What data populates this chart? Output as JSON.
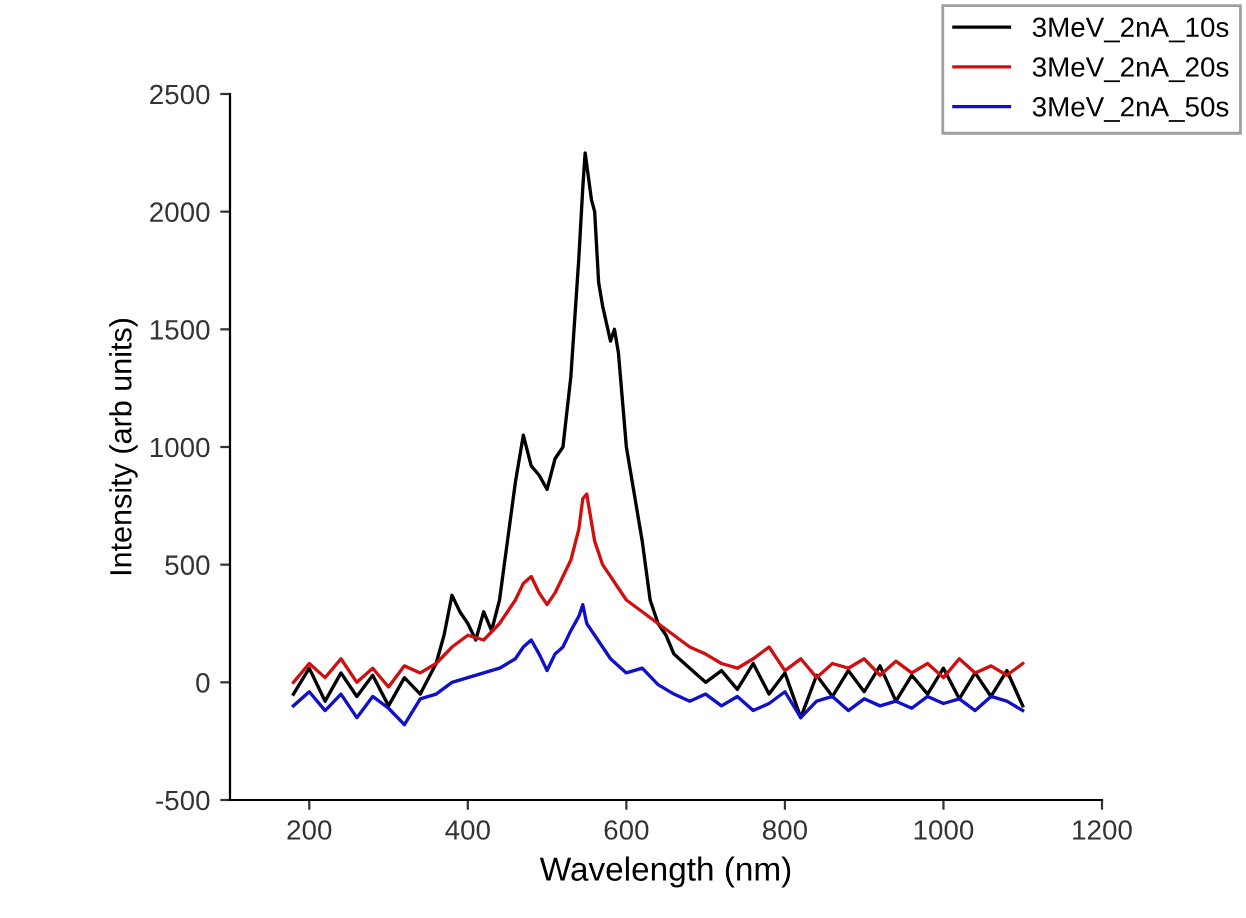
{
  "chart_data": {
    "type": "line",
    "xlabel": "Wavelength (nm)",
    "ylabel": "Intensity (arb units)",
    "xlim": [
      100,
      1200
    ],
    "ylim": [
      -500,
      2500
    ],
    "xticks": [
      200,
      400,
      600,
      800,
      1000,
      1200
    ],
    "yticks": [
      -500,
      0,
      500,
      1000,
      1500,
      2000,
      2500
    ],
    "legend": "top right",
    "grid": false,
    "marker": "none",
    "line_style": "solid",
    "series": [
      {
        "name": "3MeV_2nA_10s",
        "color": "#000000",
        "x": [
          180,
          200,
          220,
          240,
          260,
          280,
          300,
          320,
          340,
          360,
          370,
          380,
          390,
          400,
          410,
          420,
          430,
          440,
          450,
          460,
          470,
          480,
          490,
          500,
          510,
          520,
          530,
          540,
          545,
          548,
          552,
          556,
          560,
          565,
          570,
          580,
          585,
          590,
          600,
          610,
          620,
          630,
          640,
          650,
          660,
          680,
          700,
          720,
          740,
          760,
          780,
          800,
          820,
          840,
          860,
          880,
          900,
          920,
          940,
          960,
          980,
          1000,
          1020,
          1040,
          1060,
          1080,
          1100
        ],
        "values": [
          -50,
          60,
          -80,
          40,
          -60,
          30,
          -100,
          20,
          -50,
          80,
          200,
          370,
          300,
          250,
          180,
          300,
          220,
          350,
          600,
          850,
          1050,
          920,
          880,
          820,
          950,
          1000,
          1300,
          1800,
          2100,
          2250,
          2150,
          2050,
          2000,
          1700,
          1600,
          1450,
          1500,
          1400,
          1000,
          800,
          600,
          350,
          250,
          200,
          120,
          60,
          0,
          50,
          -30,
          80,
          -50,
          40,
          -150,
          30,
          -60,
          50,
          -40,
          70,
          -80,
          30,
          -50,
          60,
          -70,
          40,
          -60,
          50,
          -100
        ]
      },
      {
        "name": "3MeV_2nA_20s",
        "color": "#d01010",
        "x": [
          180,
          200,
          220,
          240,
          260,
          280,
          300,
          320,
          340,
          360,
          380,
          400,
          420,
          440,
          460,
          470,
          480,
          490,
          500,
          510,
          520,
          530,
          540,
          545,
          550,
          555,
          560,
          570,
          580,
          590,
          600,
          620,
          640,
          660,
          680,
          700,
          720,
          740,
          760,
          780,
          800,
          820,
          840,
          860,
          880,
          900,
          920,
          940,
          960,
          980,
          1000,
          1020,
          1040,
          1060,
          1080,
          1100
        ],
        "values": [
          0,
          80,
          20,
          100,
          0,
          60,
          -20,
          70,
          40,
          80,
          150,
          200,
          180,
          250,
          350,
          420,
          450,
          380,
          330,
          380,
          450,
          520,
          650,
          780,
          800,
          700,
          600,
          500,
          450,
          400,
          350,
          300,
          250,
          200,
          150,
          120,
          80,
          60,
          100,
          150,
          50,
          100,
          20,
          80,
          60,
          100,
          30,
          90,
          40,
          80,
          20,
          100,
          40,
          70,
          30,
          80
        ]
      },
      {
        "name": "3MeV_2nA_50s",
        "color": "#1010c8",
        "x": [
          180,
          200,
          220,
          240,
          260,
          280,
          300,
          320,
          340,
          360,
          380,
          400,
          420,
          440,
          460,
          470,
          480,
          490,
          500,
          510,
          520,
          530,
          540,
          545,
          550,
          560,
          570,
          580,
          600,
          620,
          640,
          660,
          680,
          700,
          720,
          740,
          760,
          780,
          800,
          820,
          840,
          860,
          880,
          900,
          920,
          940,
          960,
          980,
          1000,
          1020,
          1040,
          1060,
          1080,
          1100
        ],
        "values": [
          -100,
          -40,
          -120,
          -50,
          -150,
          -60,
          -110,
          -180,
          -70,
          -50,
          0,
          20,
          40,
          60,
          100,
          150,
          180,
          120,
          50,
          120,
          150,
          220,
          280,
          330,
          250,
          200,
          150,
          100,
          40,
          60,
          -10,
          -50,
          -80,
          -50,
          -100,
          -60,
          -120,
          -90,
          -40,
          -150,
          -80,
          -60,
          -120,
          -70,
          -100,
          -80,
          -110,
          -60,
          -90,
          -70,
          -120,
          -60,
          -80,
          -120
        ]
      }
    ]
  }
}
